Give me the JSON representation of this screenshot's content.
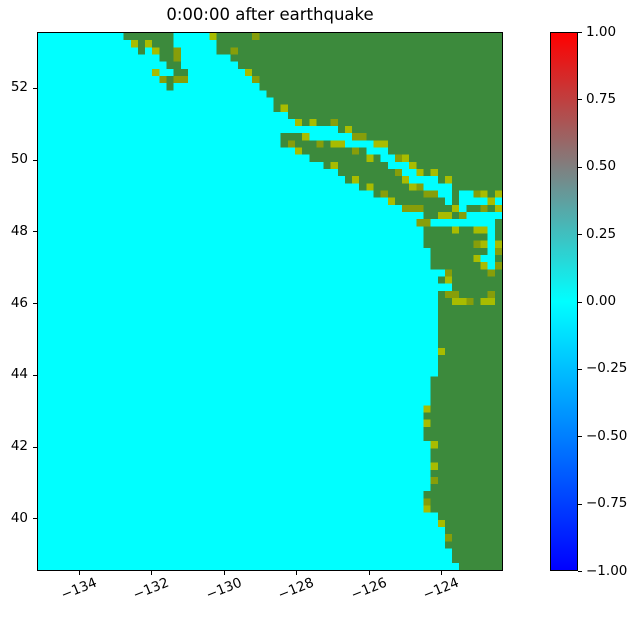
{
  "figure": {
    "background": "#ffffff"
  },
  "chart_data": {
    "type": "heatmap",
    "title": "0:00:00 after earthquake",
    "xlabel": "",
    "ylabel": "",
    "xlim": [
      -135.16,
      -122.29
    ],
    "ylim": [
      38.53,
      53.56
    ],
    "grid": false,
    "x_ticks": [
      {
        "v": -134,
        "label": "−134"
      },
      {
        "v": -132,
        "label": "−132"
      },
      {
        "v": -130,
        "label": "−130"
      },
      {
        "v": -128,
        "label": "−128"
      },
      {
        "v": -126,
        "label": "−126"
      },
      {
        "v": -124,
        "label": "−124"
      }
    ],
    "y_ticks": [
      {
        "v": 40,
        "label": "40"
      },
      {
        "v": 42,
        "label": "42"
      },
      {
        "v": 44,
        "label": "44"
      },
      {
        "v": 46,
        "label": "46"
      },
      {
        "v": 48,
        "label": "48"
      },
      {
        "v": 50,
        "label": "50"
      },
      {
        "v": 52,
        "label": "52"
      }
    ],
    "colorbar": {
      "position": "right",
      "ticks": [
        {
          "v": 1.0,
          "label": "1.00"
        },
        {
          "v": 0.75,
          "label": "0.75"
        },
        {
          "v": 0.5,
          "label": "0.50"
        },
        {
          "v": 0.25,
          "label": "0.25"
        },
        {
          "v": 0.0,
          "label": "0.00"
        },
        {
          "v": -0.25,
          "label": "−0.25"
        },
        {
          "v": -0.5,
          "label": "−0.50"
        },
        {
          "v": -0.75,
          "label": "−0.75"
        },
        {
          "v": -1.0,
          "label": "−1.00"
        }
      ],
      "range": [
        -1.0,
        1.0
      ],
      "stops": [
        {
          "pos": 0,
          "color": "#ff0000"
        },
        {
          "pos": 50,
          "color": "#00ffff"
        },
        {
          "pos": 100,
          "color": "#0000ff"
        }
      ]
    },
    "colors": {
      "ocean": "#00ffff",
      "land": "#3c8a3c",
      "lowland1": "#a8bc00",
      "lowland2": "#879e0a"
    },
    "raster": {
      "cols": 65,
      "rows": 75
    },
    "geography": {
      "land_polygons": [
        {
          "name": "bc-mainland",
          "pts": [
            [
              -130.6,
              53.8
            ],
            [
              -130.15,
              53.05
            ],
            [
              -129.55,
              52.6
            ],
            [
              -128.85,
              51.95
            ],
            [
              -128.5,
              51.35
            ],
            [
              -127.85,
              51.0
            ],
            [
              -126.9,
              50.85
            ],
            [
              -126.1,
              50.55
            ],
            [
              -125.65,
              50.35
            ],
            [
              -125.25,
              50.1
            ],
            [
              -124.6,
              49.75
            ],
            [
              -123.85,
              49.35
            ],
            [
              -123.25,
              49.1
            ],
            [
              -122.85,
              48.98
            ],
            [
              -122.2,
              48.93
            ],
            [
              -122.2,
              53.8
            ]
          ]
        },
        {
          "name": "haida-gwaii",
          "pts": [
            [
              -133.0,
              53.8
            ],
            [
              -131.6,
              53.8
            ],
            [
              -130.95,
              52.25
            ],
            [
              -131.55,
              52.0
            ]
          ]
        },
        {
          "name": "vancouver-island",
          "pts": [
            [
              -128.55,
              50.72
            ],
            [
              -128.25,
              50.35
            ],
            [
              -127.5,
              49.95
            ],
            [
              -126.6,
              49.48
            ],
            [
              -125.7,
              48.98
            ],
            [
              -124.95,
              48.6
            ],
            [
              -124.3,
              48.42
            ],
            [
              -123.35,
              48.38
            ],
            [
              -123.15,
              48.55
            ],
            [
              -123.65,
              48.75
            ],
            [
              -124.15,
              49.05
            ],
            [
              -124.85,
              49.5
            ],
            [
              -125.55,
              49.95
            ],
            [
              -126.25,
              50.33
            ],
            [
              -126.75,
              50.5
            ],
            [
              -127.45,
              50.63
            ],
            [
              -128.15,
              50.7
            ]
          ]
        },
        {
          "name": "us-mainland",
          "pts": [
            [
              -124.65,
              48.3
            ],
            [
              -123.6,
              48.18
            ],
            [
              -122.9,
              48.12
            ],
            [
              -122.2,
              48.12
            ],
            [
              -122.2,
              38.4
            ],
            [
              -123.4,
              38.4
            ],
            [
              -123.62,
              38.9
            ],
            [
              -123.95,
              39.6
            ],
            [
              -124.12,
              40.05
            ],
            [
              -124.5,
              40.32
            ],
            [
              -124.4,
              40.62
            ],
            [
              -124.2,
              40.95
            ],
            [
              -124.3,
              41.45
            ],
            [
              -124.35,
              42.05
            ],
            [
              -124.52,
              42.6
            ],
            [
              -124.55,
              42.9
            ],
            [
              -124.33,
              43.3
            ],
            [
              -124.18,
              43.9
            ],
            [
              -124.08,
              44.55
            ],
            [
              -124.02,
              45.35
            ],
            [
              -123.98,
              46.0
            ],
            [
              -124.12,
              46.35
            ],
            [
              -124.17,
              46.85
            ],
            [
              -124.3,
              47.3
            ],
            [
              -124.45,
              47.9
            ]
          ]
        }
      ],
      "water_polygons": [
        {
          "name": "skidegate-channel",
          "pts": [
            [
              -132.35,
              53.15
            ],
            [
              -132.1,
              53.22
            ],
            [
              -131.3,
              52.35
            ],
            [
              -131.6,
              52.22
            ]
          ]
        },
        {
          "name": "puget-sound",
          "pts": [
            [
              -122.72,
              48.5
            ],
            [
              -122.42,
              48.5
            ],
            [
              -122.48,
              47.5
            ],
            [
              -122.55,
              47.0
            ],
            [
              -122.82,
              47.08
            ],
            [
              -122.68,
              47.75
            ],
            [
              -122.72,
              48.2
            ]
          ]
        },
        {
          "name": "grays-harbor",
          "pts": [
            [
              -124.35,
              46.98
            ],
            [
              -123.9,
              46.93
            ],
            [
              -123.9,
              46.8
            ],
            [
              -124.35,
              46.85
            ]
          ]
        },
        {
          "name": "willapa-bay",
          "pts": [
            [
              -124.3,
              46.5
            ],
            [
              -123.6,
              46.45
            ],
            [
              -123.6,
              46.33
            ],
            [
              -124.3,
              46.38
            ]
          ]
        },
        {
          "name": "humboldt-bay",
          "pts": [
            [
              -124.45,
              40.88
            ],
            [
              -124.22,
              40.84
            ],
            [
              -124.28,
              40.62
            ],
            [
              -124.45,
              40.66
            ]
          ]
        }
      ],
      "island_blobs": [
        {
          "name": "texada",
          "cx": -124.25,
          "cy": 49.62,
          "rx": 0.33,
          "ry": 0.17
        },
        {
          "name": "quadra",
          "cx": -125.25,
          "cy": 50.18,
          "rx": 0.2,
          "ry": 0.14
        },
        {
          "name": "gulf-islands",
          "cx": -123.55,
          "cy": 48.95,
          "rx": 0.2,
          "ry": 0.14
        },
        {
          "name": "san-juan-1",
          "cx": -123.0,
          "cy": 48.62,
          "rx": 0.22,
          "ry": 0.17
        },
        {
          "name": "san-juan-2",
          "cx": -122.6,
          "cy": 48.72,
          "rx": 0.25,
          "ry": 0.19
        },
        {
          "name": "whidbey",
          "cx": -122.38,
          "cy": 48.1,
          "rx": 0.16,
          "ry": 0.22
        }
      ],
      "coastal_speckle_base_prob": 0.3,
      "coastal_speckle_zones": [
        [
          -126.0,
          -122.2,
          48.2,
          50.5,
          0.55
        ],
        [
          -123.3,
          -122.2,
          46.9,
          48.9,
          0.6
        ],
        [
          -123.3,
          -122.2,
          48.9,
          49.45,
          0.6
        ],
        [
          -128.4,
          -125.8,
          50.3,
          51.15,
          0.5
        ],
        [
          -131.2,
          -128.6,
          51.8,
          53.7,
          0.45
        ]
      ],
      "interior_speckle_zones": [
        [
          -124.25,
          -122.55,
          46.02,
          46.32,
          0.55
        ],
        [
          -123.1,
          -122.2,
          48.95,
          49.3,
          0.25
        ],
        [
          -123.4,
          -122.3,
          48.3,
          48.9,
          0.35
        ],
        [
          -123.0,
          -122.2,
          47.0,
          48.8,
          0.22
        ],
        [
          -131.1,
          -128.6,
          52.1,
          53.7,
          0.13
        ]
      ]
    }
  }
}
